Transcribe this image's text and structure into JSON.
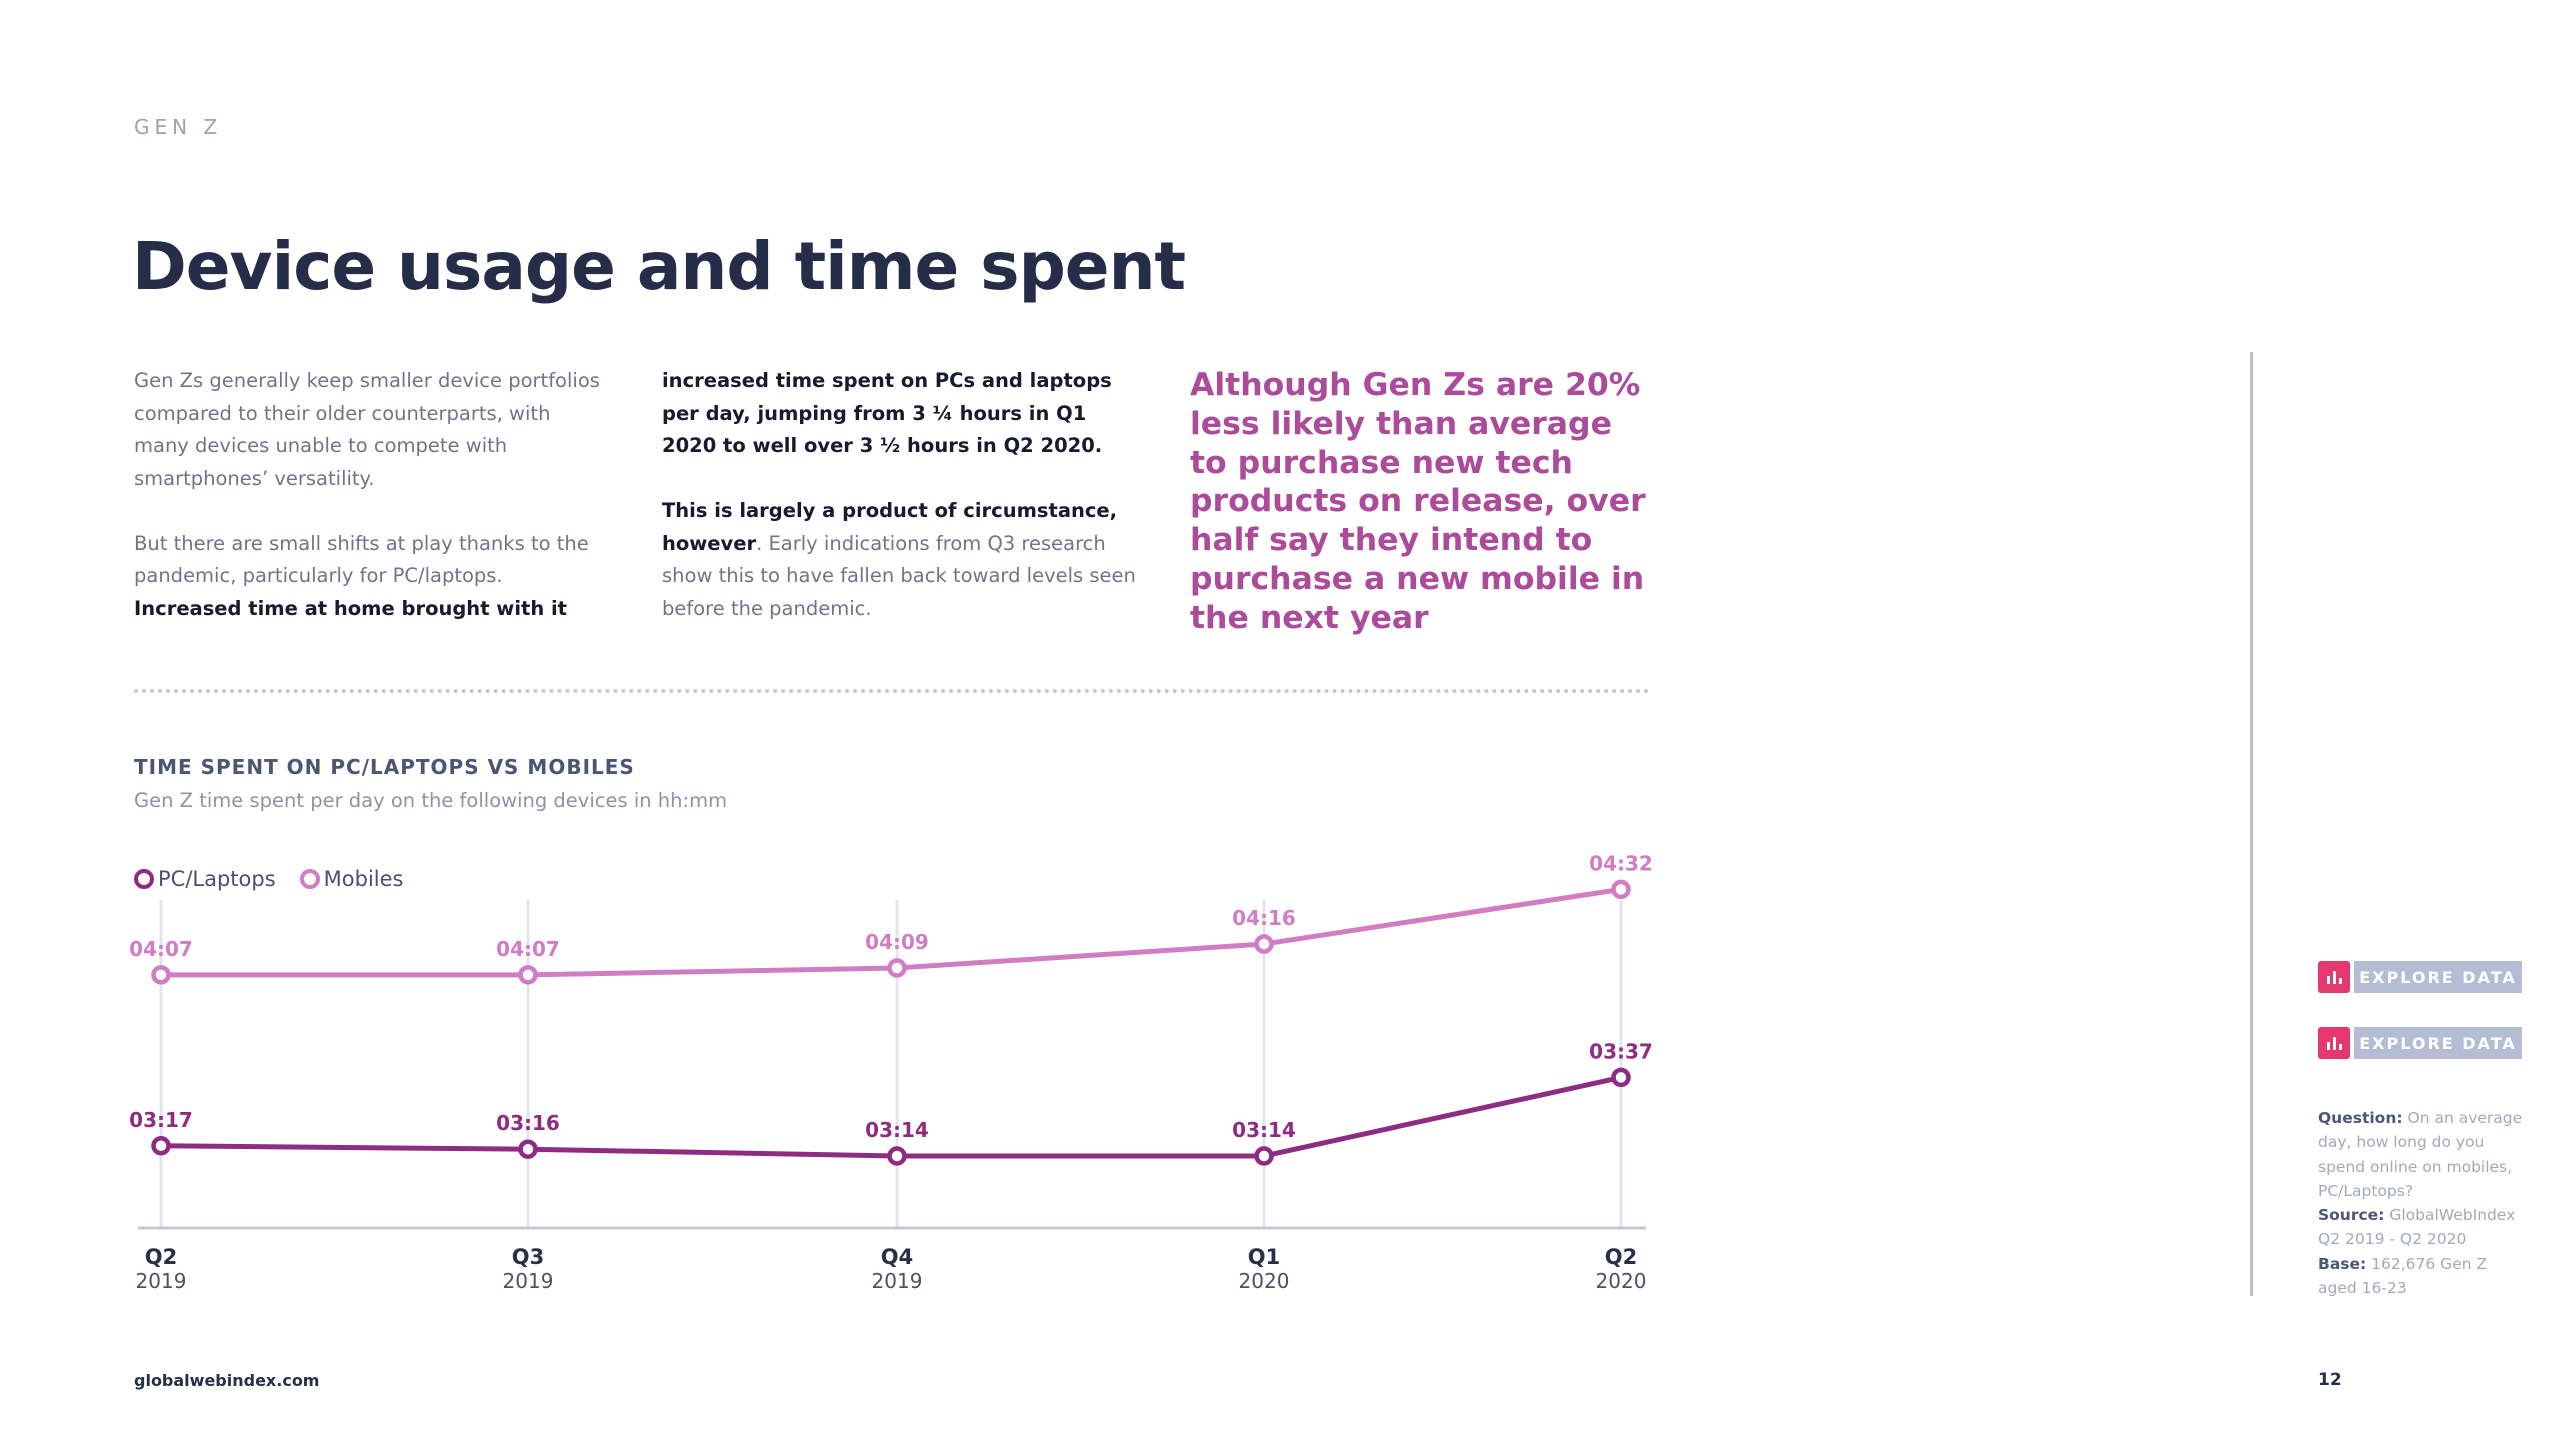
{
  "header": {
    "section_label": "GEN Z",
    "title": "Device usage and time spent"
  },
  "text": {
    "col1_p1": "Gen Zs generally keep smaller device portfolios compared to their older counterparts, with many devices unable to compete with smartphones’ versatility.",
    "col1_p2_regular": "But there are small shifts at play thanks to the pandemic, particularly for PC/laptops.",
    "col1_p2_bold": "Increased time at home brought with it",
    "col2_p1_bold": "increased time spent on PCs and laptops per day, jumping from 3 ¼ hours in Q1 2020 to well over 3 ½ hours in Q2 2020.",
    "col2_p2_bold": "This is largely a product of circumstance, however",
    "col2_p2_regular": ". Early indications from Q3 research show this to have fallen back toward levels seen before the pandemic.",
    "pull_quote": "Although Gen Zs are 20% less likely than average to purchase new tech products on release, over half say they intend to purchase a new mobile in the next year"
  },
  "chart_data": {
    "type": "line",
    "title": "TIME SPENT ON PC/LAPTOPS VS MOBILES",
    "subtitle": "Gen Z time spent per day on the following devices in hh:mm",
    "categories": [
      {
        "quarter": "Q2",
        "year": "2019"
      },
      {
        "quarter": "Q3",
        "year": "2019"
      },
      {
        "quarter": "Q4",
        "year": "2019"
      },
      {
        "quarter": "Q1",
        "year": "2020"
      },
      {
        "quarter": "Q2",
        "year": "2020"
      }
    ],
    "series": [
      {
        "name": "Mobiles",
        "color": "#d27cc3",
        "labels": [
          "04:07",
          "04:07",
          "04:09",
          "04:16",
          "04:32"
        ],
        "values_minutes": [
          247,
          247,
          249,
          256,
          272
        ]
      },
      {
        "name": "PC/Laptops",
        "color": "#8e2c84",
        "labels": [
          "03:17",
          "03:16",
          "03:14",
          "03:14",
          "03:37"
        ],
        "values_minutes": [
          197,
          196,
          194,
          194,
          217
        ]
      }
    ],
    "legend": [
      "PC/Laptops",
      "Mobiles"
    ],
    "xlabel": "",
    "ylabel": "",
    "ylim_minutes": [
      175,
      280
    ]
  },
  "sidebar": {
    "explore_label_1": "EXPLORE DATA",
    "explore_label_2": "EXPLORE DATA",
    "question_label": "Question:",
    "question_text": "On an average day, how long do you spend online on mobiles, PC/Laptops?",
    "source_label": "Source:",
    "source_text": "GlobalWebIndex Q2 2019 - Q2 2020",
    "base_label": "Base:",
    "base_text": "162,676 Gen Z aged 16-23"
  },
  "footer": {
    "url": "globalwebindex.com",
    "page_number": "12"
  },
  "colors": {
    "title": "#252d48",
    "accent_quote": "#ad4b9b",
    "mobiles": "#d27cc3",
    "pc": "#8e2c84",
    "explore_icon": "#e4386f",
    "explore_label": "#b4bdd3"
  }
}
